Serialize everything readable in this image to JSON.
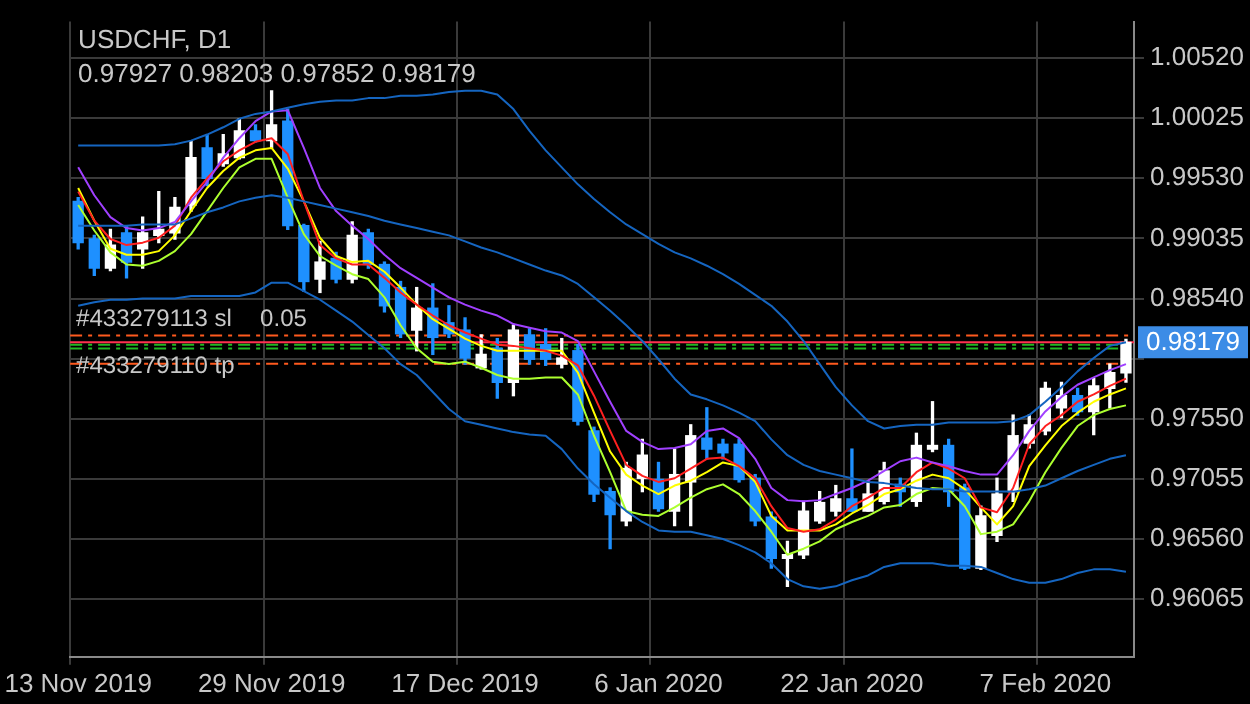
{
  "chart_data": {
    "type": "candlestick",
    "title": "USDCHF, D1",
    "subtitle": "0.97927 0.98203 0.97852 0.98179",
    "categories": [
      "13 Nov 2019",
      null,
      null,
      null,
      null,
      null,
      null,
      null,
      null,
      null,
      null,
      null,
      "29 Nov 2019",
      null,
      null,
      null,
      null,
      null,
      null,
      null,
      null,
      null,
      null,
      null,
      "17 Dec 2019",
      null,
      null,
      null,
      null,
      null,
      null,
      null,
      null,
      null,
      null,
      null,
      "6 Jan 2020",
      null,
      null,
      null,
      null,
      null,
      null,
      null,
      null,
      null,
      null,
      null,
      "22 Jan 2020",
      null,
      null,
      null,
      null,
      null,
      null,
      null,
      null,
      null,
      null,
      null,
      "7 Feb 2020",
      null,
      null,
      null,
      null,
      null
    ],
    "ohlc": [
      [
        0.9934,
        0.9937,
        0.9895,
        0.99
      ],
      [
        0.9903,
        0.9906,
        0.9873,
        0.9879
      ],
      [
        0.9879,
        0.9911,
        0.9877,
        0.9898
      ],
      [
        0.9908,
        0.9914,
        0.9871,
        0.9884
      ],
      [
        0.9895,
        0.9921,
        0.9879,
        0.9908
      ],
      [
        0.9906,
        0.9942,
        0.99,
        0.9911
      ],
      [
        0.9908,
        0.9937,
        0.9903,
        0.9929
      ],
      [
        0.9931,
        0.9984,
        0.9926,
        0.997
      ],
      [
        0.9978,
        0.9989,
        0.9947,
        0.9953
      ],
      [
        0.9965,
        0.9989,
        0.9963,
        0.9973
      ],
      [
        0.997,
        1.0002,
        0.9969,
        0.9992
      ],
      [
        0.9992,
        0.9997,
        0.9983,
        0.9984
      ],
      [
        0.9984,
        1.0025,
        0.9978,
        0.9997
      ],
      [
        1.0,
        1.001,
        0.9911,
        0.9914
      ],
      [
        0.9914,
        0.9915,
        0.986,
        0.9868
      ],
      [
        0.987,
        0.9901,
        0.9859,
        0.9884
      ],
      [
        0.9887,
        0.9892,
        0.9867,
        0.987
      ],
      [
        0.987,
        0.9917,
        0.9867,
        0.9906
      ],
      [
        0.9908,
        0.9911,
        0.9879,
        0.9882
      ],
      [
        0.9882,
        0.9884,
        0.9843,
        0.9848
      ],
      [
        0.9863,
        0.9868,
        0.9822,
        0.9825
      ],
      [
        0.9828,
        0.9863,
        0.9811,
        0.9846
      ],
      [
        0.9846,
        0.9866,
        0.9808,
        0.9822
      ],
      [
        0.9834,
        0.9848,
        0.9822,
        0.9825
      ],
      [
        0.9828,
        0.9838,
        0.98,
        0.9805
      ],
      [
        0.9797,
        0.9824,
        0.9796,
        0.9808
      ],
      [
        0.9813,
        0.9821,
        0.9772,
        0.9785
      ],
      [
        0.9785,
        0.9832,
        0.9774,
        0.9828
      ],
      [
        0.9824,
        0.9829,
        0.98,
        0.9804
      ],
      [
        0.9816,
        0.9829,
        0.9799,
        0.9804
      ],
      [
        0.98,
        0.9821,
        0.9797,
        0.9805
      ],
      [
        0.9811,
        0.9816,
        0.975,
        0.9753
      ],
      [
        0.9745,
        0.9748,
        0.9687,
        0.9693
      ],
      [
        0.9695,
        0.9698,
        0.9648,
        0.9676
      ],
      [
        0.9671,
        0.9719,
        0.9667,
        0.9714
      ],
      [
        0.9706,
        0.9738,
        0.9695,
        0.9725
      ],
      [
        0.9705,
        0.9719,
        0.9679,
        0.9681
      ],
      [
        0.9679,
        0.973,
        0.9667,
        0.9709
      ],
      [
        0.9703,
        0.975,
        0.9667,
        0.9741
      ],
      [
        0.9739,
        0.9764,
        0.9722,
        0.973
      ],
      [
        0.9734,
        0.9738,
        0.9722,
        0.9727
      ],
      [
        0.9734,
        0.9738,
        0.9703,
        0.9705
      ],
      [
        0.9706,
        0.9709,
        0.9667,
        0.9671
      ],
      [
        0.9674,
        0.9678,
        0.9632,
        0.964
      ],
      [
        0.964,
        0.9654,
        0.9617,
        0.9643
      ],
      [
        0.9643,
        0.9687,
        0.964,
        0.9679
      ],
      [
        0.9671,
        0.9695,
        0.9669,
        0.9686
      ],
      [
        0.9679,
        0.97,
        0.9675,
        0.9689
      ],
      [
        0.9689,
        0.973,
        0.9679,
        0.9679
      ],
      [
        0.9679,
        0.9703,
        0.9679,
        0.9693
      ],
      [
        0.9687,
        0.9719,
        0.9685,
        0.9712
      ],
      [
        0.9701,
        0.9706,
        0.9683,
        0.9695
      ],
      [
        0.9687,
        0.9743,
        0.9683,
        0.9733
      ],
      [
        0.973,
        0.9769,
        0.9728,
        0.9733
      ],
      [
        0.9733,
        0.9738,
        0.9683,
        0.9695
      ],
      [
        0.9698,
        0.9701,
        0.9631,
        0.9632
      ],
      [
        0.9632,
        0.9683,
        0.9631,
        0.9675
      ],
      [
        0.9659,
        0.9706,
        0.9654,
        0.9693
      ],
      [
        0.9695,
        0.9758,
        0.9687,
        0.9741
      ],
      [
        0.9735,
        0.9758,
        0.9731,
        0.975
      ],
      [
        0.9745,
        0.9785,
        0.9742,
        0.978
      ],
      [
        0.9764,
        0.9785,
        0.9756,
        0.9774
      ],
      [
        0.9774,
        0.978,
        0.9758,
        0.9761
      ],
      [
        0.9761,
        0.9788,
        0.9742,
        0.9782
      ],
      [
        0.978,
        0.98,
        0.9764,
        0.9793
      ],
      [
        0.97927,
        0.98203,
        0.97852,
        0.98179
      ]
    ],
    "colors": [
      "#1e90ff",
      "#1e90ff",
      "#ffffff",
      "#1e90ff",
      "#ffffff",
      "#ffffff",
      "#ffffff",
      "#ffffff",
      "#1e90ff",
      "#ffffff",
      "#ffffff",
      "#1e90ff",
      "#ffffff",
      "#1e90ff",
      "#1e90ff",
      "#ffffff",
      "#1e90ff",
      "#ffffff",
      "#1e90ff",
      "#1e90ff",
      "#1e90ff",
      "#ffffff",
      "#1e90ff",
      "#1e90ff",
      "#1e90ff",
      "#ffffff",
      "#1e90ff",
      "#ffffff",
      "#1e90ff",
      "#1e90ff",
      "#ffffff",
      "#1e90ff",
      "#1e90ff",
      "#1e90ff",
      "#ffffff",
      "#ffffff",
      "#1e90ff",
      "#ffffff",
      "#ffffff",
      "#1e90ff",
      "#1e90ff",
      "#1e90ff",
      "#1e90ff",
      "#1e90ff",
      "#ffffff",
      "#ffffff",
      "#ffffff",
      "#ffffff",
      "#1e90ff",
      "#ffffff",
      "#ffffff",
      "#1e90ff",
      "#ffffff",
      "#ffffff",
      "#1e90ff",
      "#1e90ff",
      "#ffffff",
      "#ffffff",
      "#ffffff",
      "#ffffff",
      "#ffffff",
      "#ffffff",
      "#1e90ff",
      "#ffffff",
      "#ffffff",
      "#ffffff"
    ],
    "series": [
      {
        "type": "line",
        "color": "#1565c0",
        "values": [
          0.998,
          0.998,
          0.998,
          0.998,
          0.998,
          0.998,
          0.9981,
          0.9984,
          0.9989,
          0.9995,
          1.0002,
          1.0006,
          1.0008,
          1.0011,
          1.0014,
          1.0016,
          1.0017,
          1.0017,
          1.0019,
          1.0019,
          1.0021,
          1.0021,
          1.0022,
          1.0024,
          1.0025,
          1.0025,
          1.0022,
          1.001,
          0.9992,
          0.9976,
          0.9962,
          0.9948,
          0.9936,
          0.9925,
          0.9915,
          0.9907,
          0.9899,
          0.9892,
          0.9887,
          0.9881,
          0.9874,
          0.9866,
          0.9857,
          0.9848,
          0.9835,
          0.9819,
          0.98,
          0.9781,
          0.9766,
          0.9753,
          0.9747,
          0.9749,
          0.975,
          0.975,
          0.9752,
          0.9752,
          0.9752,
          0.9752,
          0.9753,
          0.9758,
          0.9769,
          0.9781,
          0.9794,
          0.9805,
          0.9815,
          0.9818
        ]
      },
      {
        "type": "line",
        "color": "#1565c0",
        "values": [
          0.9914,
          0.9914,
          0.9914,
          0.9914,
          0.9915,
          0.9915,
          0.9915,
          0.992,
          0.9925,
          0.9929,
          0.9934,
          0.9937,
          0.9939,
          0.9937,
          0.9934,
          0.9931,
          0.9928,
          0.9925,
          0.9922,
          0.9918,
          0.9915,
          0.9912,
          0.9909,
          0.9906,
          0.9901,
          0.9896,
          0.9892,
          0.9887,
          0.9882,
          0.9877,
          0.9873,
          0.9866,
          0.9855,
          0.9844,
          0.9832,
          0.9819,
          0.9804,
          0.9788,
          0.9775,
          0.9771,
          0.9766,
          0.976,
          0.9753,
          0.9738,
          0.9725,
          0.9717,
          0.9712,
          0.9709,
          0.9706,
          0.9703,
          0.9702,
          0.97,
          0.9698,
          0.9697,
          0.9697,
          0.9695,
          0.9695,
          0.9695,
          0.9695,
          0.9697,
          0.97,
          0.9706,
          0.9712,
          0.9717,
          0.9722,
          0.9725
        ]
      },
      {
        "type": "line",
        "color": "#1565c0",
        "values": [
          0.9848,
          0.9851,
          0.9853,
          0.9853,
          0.9854,
          0.9854,
          0.9854,
          0.9856,
          0.9856,
          0.9856,
          0.9856,
          0.9859,
          0.9867,
          0.9867,
          0.986,
          0.9853,
          0.9844,
          0.9835,
          0.9824,
          0.9813,
          0.98,
          0.9791,
          0.9777,
          0.9763,
          0.9753,
          0.975,
          0.9747,
          0.9744,
          0.9742,
          0.9741,
          0.973,
          0.9714,
          0.9701,
          0.969,
          0.9679,
          0.967,
          0.9663,
          0.9662,
          0.9662,
          0.9659,
          0.9656,
          0.9651,
          0.9645,
          0.9636,
          0.9623,
          0.9617,
          0.9615,
          0.9617,
          0.9622,
          0.9626,
          0.9633,
          0.9636,
          0.9636,
          0.9636,
          0.9634,
          0.9634,
          0.9633,
          0.9628,
          0.9623,
          0.962,
          0.962,
          0.9623,
          0.9628,
          0.9631,
          0.9631,
          0.9629
        ]
      },
      {
        "type": "line",
        "color": "#a040ff",
        "values": [
          0.9962,
          0.9939,
          0.9921,
          0.9912,
          0.991,
          0.9912,
          0.9917,
          0.9934,
          0.995,
          0.997,
          0.9986,
          1.0,
          1.0008,
          1.0009,
          0.9978,
          0.9945,
          0.9926,
          0.9914,
          0.9903,
          0.989,
          0.9879,
          0.9871,
          0.9863,
          0.9855,
          0.9849,
          0.9844,
          0.984,
          0.9833,
          0.983,
          0.9827,
          0.9826,
          0.9819,
          0.9794,
          0.9769,
          0.9745,
          0.9736,
          0.973,
          0.9731,
          0.9734,
          0.9745,
          0.9747,
          0.9739,
          0.9722,
          0.9698,
          0.9688,
          0.9687,
          0.9688,
          0.9693,
          0.9698,
          0.9704,
          0.9712,
          0.972,
          0.9723,
          0.9719,
          0.9716,
          0.9712,
          0.9709,
          0.9709,
          0.9725,
          0.9745,
          0.9761,
          0.9773,
          0.9783,
          0.9789,
          0.9795,
          0.98
        ]
      },
      {
        "type": "line",
        "color": "#ff2020",
        "values": [
          0.9942,
          0.9918,
          0.9903,
          0.9898,
          0.99,
          0.9904,
          0.9914,
          0.9937,
          0.9953,
          0.9967,
          0.9976,
          0.9983,
          0.9986,
          0.9973,
          0.9934,
          0.9898,
          0.9887,
          0.9882,
          0.9882,
          0.9871,
          0.9859,
          0.9849,
          0.984,
          0.9832,
          0.9826,
          0.9821,
          0.9816,
          0.9815,
          0.9813,
          0.9811,
          0.9807,
          0.9799,
          0.9774,
          0.9745,
          0.9717,
          0.9708,
          0.9703,
          0.9706,
          0.9714,
          0.9722,
          0.9723,
          0.9716,
          0.9706,
          0.9683,
          0.9665,
          0.9662,
          0.9664,
          0.9672,
          0.9683,
          0.969,
          0.9698,
          0.9698,
          0.9711,
          0.9719,
          0.9714,
          0.9706,
          0.9682,
          0.9678,
          0.9698,
          0.9734,
          0.9749,
          0.9758,
          0.9769,
          0.9775,
          0.9782,
          0.9788
        ]
      },
      {
        "type": "line",
        "color": "#ffff00",
        "values": [
          0.9945,
          0.9918,
          0.9895,
          0.989,
          0.989,
          0.9893,
          0.9906,
          0.9926,
          0.9945,
          0.9959,
          0.997,
          0.9976,
          0.9978,
          0.9961,
          0.9934,
          0.9904,
          0.9889,
          0.9884,
          0.9885,
          0.9876,
          0.9863,
          0.9849,
          0.9837,
          0.9829,
          0.9821,
          0.9815,
          0.9811,
          0.9811,
          0.9811,
          0.9811,
          0.9811,
          0.9793,
          0.976,
          0.9728,
          0.9709,
          0.97,
          0.9693,
          0.97,
          0.9704,
          0.9711,
          0.9719,
          0.9716,
          0.9703,
          0.9675,
          0.9663,
          0.9663,
          0.9663,
          0.9668,
          0.9677,
          0.9684,
          0.9693,
          0.9697,
          0.9704,
          0.9709,
          0.9706,
          0.9697,
          0.9682,
          0.9668,
          0.9683,
          0.9716,
          0.9733,
          0.9749,
          0.976,
          0.9769,
          0.9775,
          0.978
        ]
      },
      {
        "type": "line",
        "color": "#adff2f",
        "values": [
          0.9931,
          0.991,
          0.9892,
          0.9882,
          0.9881,
          0.9885,
          0.9893,
          0.9907,
          0.9926,
          0.9945,
          0.9962,
          0.9969,
          0.9969,
          0.9937,
          0.9907,
          0.9889,
          0.9881,
          0.9874,
          0.987,
          0.9855,
          0.9832,
          0.9813,
          0.9802,
          0.98,
          0.9802,
          0.9797,
          0.9791,
          0.9788,
          0.9788,
          0.9789,
          0.9789,
          0.9775,
          0.9741,
          0.9711,
          0.9679,
          0.9676,
          0.9675,
          0.9682,
          0.969,
          0.9697,
          0.9701,
          0.9693,
          0.9679,
          0.9662,
          0.9643,
          0.9648,
          0.9654,
          0.9664,
          0.967,
          0.9675,
          0.9682,
          0.9684,
          0.9693,
          0.9698,
          0.9697,
          0.9683,
          0.966,
          0.9662,
          0.9668,
          0.9687,
          0.9711,
          0.9731,
          0.9749,
          0.9758,
          0.9763,
          0.9766
        ]
      }
    ],
    "ylim": [
      0.9559,
      1.0082
    ],
    "yticks": [
      {
        "value": 1.0052,
        "label": "1.00520"
      },
      {
        "value": 1.00025,
        "label": "1.00025"
      },
      {
        "value": 0.9953,
        "label": "0.99530"
      },
      {
        "value": 0.99035,
        "label": "0.99035"
      },
      {
        "value": 0.9854,
        "label": "0.98540"
      },
      {
        "value": 0.98045,
        "label": null
      },
      {
        "value": 0.9755,
        "label": "0.97550"
      },
      {
        "value": 0.97055,
        "label": "0.97055"
      },
      {
        "value": 0.9656,
        "label": "0.96560"
      },
      {
        "value": 0.96065,
        "label": "0.96065"
      }
    ],
    "grid": true,
    "ref_lines": [
      {
        "axis": "y",
        "value": 0.98236,
        "label": "#433279113 sl",
        "color": "#ff5a1e",
        "line_style": "dashed"
      },
      {
        "axis": "y",
        "value": 0.9816,
        "color": "#22b822",
        "line_style": "dashed"
      },
      {
        "axis": "y",
        "value": 0.98129,
        "label": "#433279110 tp",
        "color": "#22b822",
        "line_style": "dashed"
      },
      {
        "axis": "y",
        "value": 0.98003,
        "color": "#ff5a1e",
        "line_style": "dashed"
      },
      {
        "axis": "y",
        "value": 0.98179,
        "label": "0.98179",
        "color": "#ff3050",
        "line_style": "solid"
      }
    ],
    "annotations": [
      "0.05"
    ]
  }
}
